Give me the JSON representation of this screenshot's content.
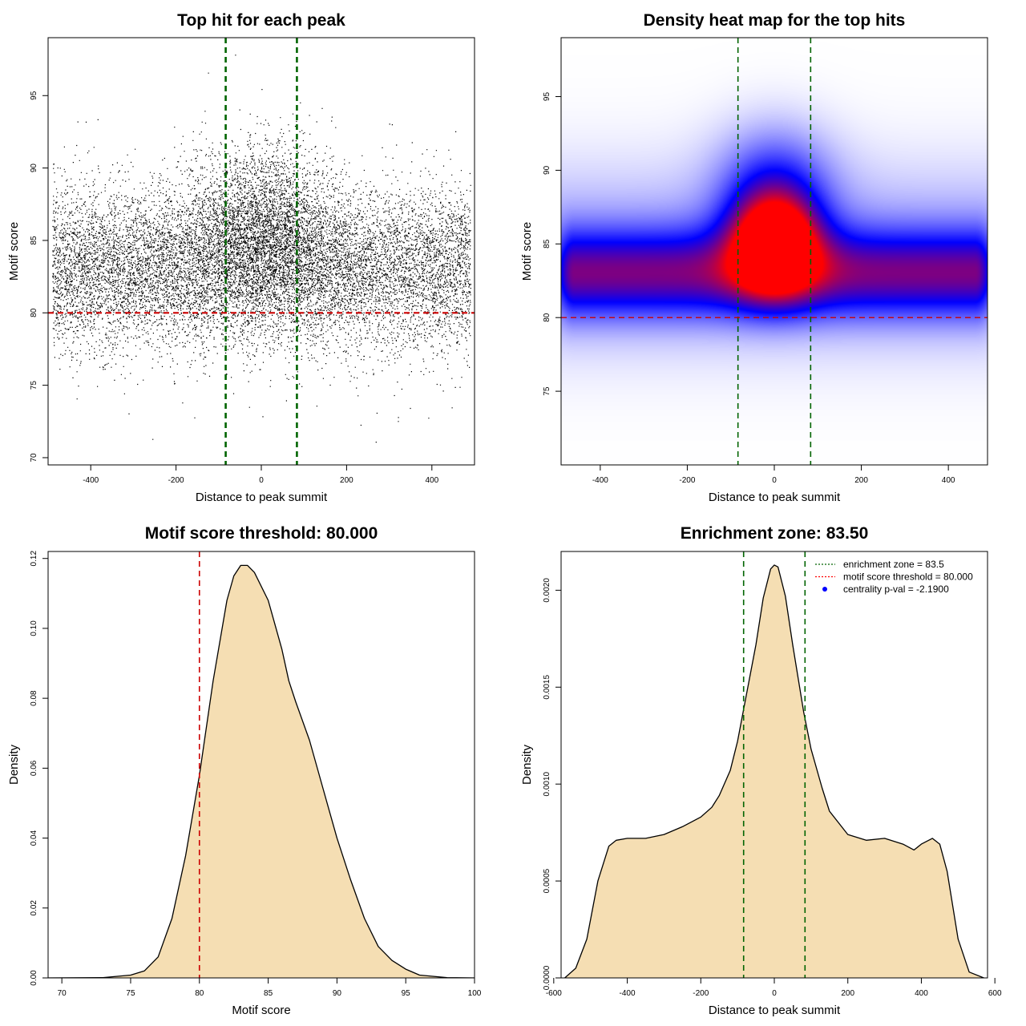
{
  "chart_data": [
    {
      "type": "scatter",
      "title": "Top hit for each peak",
      "xlabel": "Distance to peak summit",
      "ylabel": "Motif score",
      "xlim": [
        -500,
        500
      ],
      "ylim": [
        69.5,
        99
      ],
      "xticks": [
        -400,
        -200,
        0,
        200,
        400
      ],
      "yticks": [
        70,
        75,
        80,
        85,
        90,
        95
      ],
      "vlines": [
        -83.5,
        83.5
      ],
      "hline": 80,
      "colors": {
        "points": "#000000",
        "vline": "#006400",
        "hline": "#cc0000"
      },
      "point_count_approx": 15000,
      "distribution": {
        "x_range": [
          -490,
          490
        ],
        "background_y_mean": 83,
        "central_y_mean": 86,
        "central_x_sd": 90
      }
    },
    {
      "type": "heatmap",
      "title": "Density heat map for the top hits",
      "xlabel": "Distance to peak summit",
      "ylabel": "Motif score",
      "xlim": [
        -490,
        490
      ],
      "ylim": [
        70,
        99
      ],
      "xticks": [
        -400,
        -200,
        0,
        200,
        400
      ],
      "yticks": [
        75,
        80,
        85,
        90,
        95
      ],
      "vlines": [
        -83.5,
        83.5
      ],
      "hline": 80,
      "colors": {
        "low": "#ffffff",
        "mid": "#0000ff",
        "high": "#ff0000",
        "vline": "#006400",
        "hline": "#cc0000"
      },
      "hotspot": {
        "x": 0,
        "y": 85
      }
    },
    {
      "type": "area",
      "title": "Motif score threshold: 80.000",
      "xlabel": "Motif score",
      "ylabel": "Density",
      "xlim": [
        69,
        100
      ],
      "ylim": [
        0,
        0.122
      ],
      "xticks": [
        70,
        75,
        80,
        85,
        90,
        95,
        100
      ],
      "yticks": [
        "0.00",
        "0.02",
        "0.04",
        "0.06",
        "0.08",
        "0.10",
        "0.12"
      ],
      "x": [
        69,
        73,
        75,
        76,
        77,
        78,
        79,
        80,
        81,
        82,
        82.5,
        83,
        83.5,
        84,
        85,
        86,
        86.5,
        87,
        88,
        89,
        90,
        91,
        92,
        93,
        94,
        95,
        96,
        98,
        100
      ],
      "y": [
        0,
        0.0001,
        0.0008,
        0.002,
        0.006,
        0.017,
        0.035,
        0.058,
        0.085,
        0.108,
        0.115,
        0.118,
        0.118,
        0.116,
        0.108,
        0.094,
        0.085,
        0.079,
        0.068,
        0.054,
        0.04,
        0.028,
        0.017,
        0.009,
        0.005,
        0.0025,
        0.0008,
        0.0001,
        0
      ],
      "vline": 80,
      "colors": {
        "fill": "#f5deb3",
        "stroke": "#000000",
        "vline": "#cc0000"
      }
    },
    {
      "type": "area",
      "title": "Enrichment zone: 83.50",
      "xlabel": "Distance to peak summit",
      "ylabel": "Density",
      "xlim": [
        -580,
        580
      ],
      "ylim": [
        0,
        0.0022
      ],
      "xticks": [
        -600,
        -400,
        -200,
        0,
        200,
        400,
        600
      ],
      "yticks": [
        "0.0000",
        "0.0005",
        "0.0010",
        "0.0015",
        "0.0020"
      ],
      "x": [
        -570,
        -540,
        -510,
        -480,
        -450,
        -430,
        -400,
        -350,
        -300,
        -250,
        -200,
        -170,
        -150,
        -120,
        -100,
        -80,
        -50,
        -30,
        -10,
        0,
        10,
        30,
        50,
        80,
        100,
        130,
        150,
        200,
        250,
        300,
        350,
        380,
        400,
        430,
        450,
        470,
        500,
        530,
        570
      ],
      "y": [
        0,
        5e-05,
        0.0002,
        0.0005,
        0.00068,
        0.00071,
        0.00072,
        0.00072,
        0.00074,
        0.00078,
        0.00083,
        0.00088,
        0.00094,
        0.00107,
        0.00122,
        0.00142,
        0.00172,
        0.00196,
        0.00211,
        0.00213,
        0.00212,
        0.00197,
        0.00172,
        0.00137,
        0.00118,
        0.00098,
        0.00086,
        0.00074,
        0.00071,
        0.00072,
        0.00069,
        0.00066,
        0.00069,
        0.00072,
        0.00069,
        0.00055,
        0.0002,
        3e-05,
        0
      ],
      "vlines": [
        -83.5,
        83.5
      ],
      "colors": {
        "fill": "#f5deb3",
        "stroke": "#000000",
        "vline": "#006400"
      },
      "legend": {
        "position": "top-right",
        "items": [
          {
            "label": "enrichment zone = 83.5",
            "symbol": "dotted-line",
            "color": "#006400"
          },
          {
            "label": "motif score threshold = 80.000",
            "symbol": "dotted-line",
            "color": "#ff0000"
          },
          {
            "label": "centrality p-val = -2.1900",
            "symbol": "point",
            "color": "#0000ff"
          }
        ]
      }
    }
  ]
}
